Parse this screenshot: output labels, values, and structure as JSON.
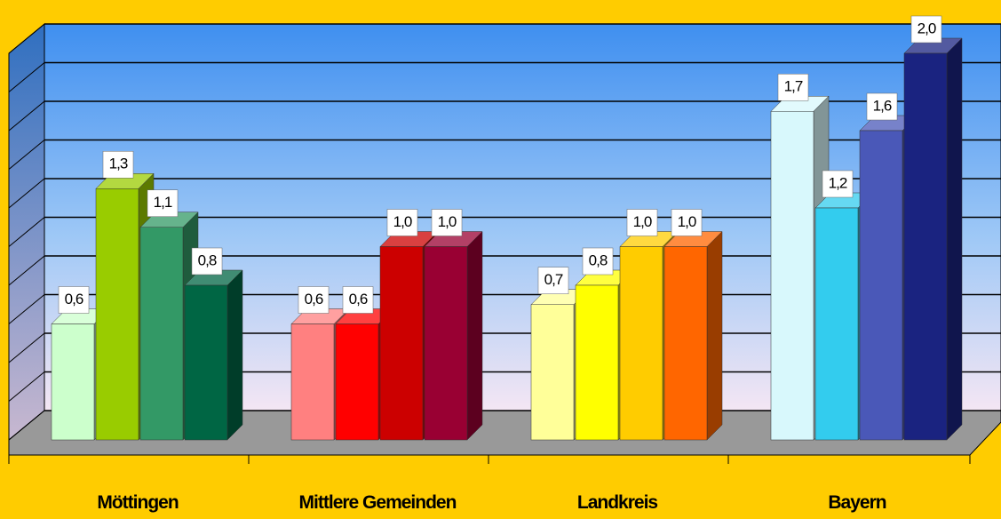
{
  "chart_data": {
    "type": "bar3d",
    "categories": [
      "Möttingen",
      "Mittlere Gemeinden",
      "Landkreis",
      "Bayern"
    ],
    "values": [
      [
        0.6,
        1.3,
        1.1,
        0.8
      ],
      [
        0.6,
        0.6,
        1.0,
        1.0
      ],
      [
        0.7,
        0.8,
        1.0,
        1.0
      ],
      [
        1.7,
        1.2,
        1.6,
        2.0
      ]
    ],
    "value_labels": [
      [
        "0,6",
        "1,3",
        "1,1",
        "0,8"
      ],
      [
        "0,6",
        "0,6",
        "1,0",
        "1,0"
      ],
      [
        "0,7",
        "0,8",
        "1,0",
        "1,0"
      ],
      [
        "1,7",
        "1,2",
        "1,6",
        "2,0"
      ]
    ],
    "colors": [
      [
        "#ccffcc",
        "#99cc00",
        "#339966",
        "#006644"
      ],
      [
        "#ff8080",
        "#ff0000",
        "#cc0000",
        "#990033"
      ],
      [
        "#ffff99",
        "#ffff00",
        "#ffcc00",
        "#ff6600"
      ],
      [
        "#d8f8fc",
        "#33ccee",
        "#4a58b8",
        "#1a2380"
      ]
    ],
    "ylim": [
      0,
      2.0
    ],
    "yticks": [
      0,
      0.2,
      0.4,
      0.6,
      0.8,
      1.0,
      1.2,
      1.4,
      1.6,
      1.8,
      2.0
    ],
    "ytick_labels_shown": false,
    "grid": true
  }
}
